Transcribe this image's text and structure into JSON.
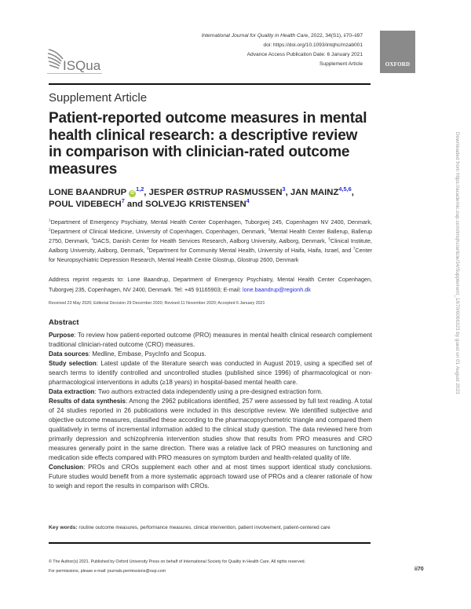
{
  "header": {
    "journal": "International Journal for Quality in Health Care",
    "citation": ", 2022, 34(S1), ii70–ii97",
    "doi": "doi: https://doi.org/10.1093/intqhc/mzab001",
    "advance_access": "Advance Access Publication Date: 6 January 2021",
    "article_type": "Supplement Article",
    "publisher_logo": "OXFORD",
    "society_logo": "ISQua"
  },
  "section_label": "Supplement Article",
  "title": "Patient-reported outcome measures in mental health clinical research: a descriptive review in comparison with clinician-rated outcome measures",
  "authors": [
    {
      "name": "LONE BAANDRUP",
      "sup": "1,2",
      "orcid": "iD"
    },
    {
      "sep": ", ",
      "name": "JESPER ØSTRUP RASMUSSEN",
      "sup": "3"
    },
    {
      "sep": ", ",
      "name": "JAN MAINZ",
      "sup": "4,5,6"
    },
    {
      "sep": ", ",
      "name": "POUL VIDEBECH",
      "sup": "7"
    },
    {
      "sep": " and ",
      "name": "SOLVEJG KRISTENSEN",
      "sup": "4"
    }
  ],
  "affiliations": [
    {
      "n": "1",
      "text": "Department of Emergency Psychiatry, Mental Health Center Copenhagen, Tuborgvej 245, Copenhagen NV 2400, Denmark, "
    },
    {
      "n": "2",
      "text": "Department of Clinical Medicine, University of Copenhagen, Copenhagen, Denmark, "
    },
    {
      "n": "3",
      "text": "Mental Health Center Ballerup, Ballerup 2750, Denmark, "
    },
    {
      "n": "4",
      "text": "DACS, Danish Center for Health Services Research, Aalborg University, Aalborg, Denmark, "
    },
    {
      "n": "5",
      "text": "Clinical Institute, Aalborg University, Aalborg, Denmark, "
    },
    {
      "n": "6",
      "text": "Department for Community Mental Health, University of Haifa, Haifa, Israel, and "
    },
    {
      "n": "7",
      "text": "Center for Neuropsychiatric Depression Research, Mental Health Centre Glostrup, Glostrup 2600, Denmark"
    }
  ],
  "address": {
    "text": "Address reprint requests to: Lone Baandrup, Department of Emergency Psychiatry, Mental Health Center Copenhagen, Tuborgvej 235, Copenhagen, NV 2400, Denmark. Tel: +45 91165903; E-mail: ",
    "email": "lone.baandrup@regionh.dk"
  },
  "dates": "Received 23 May 2020; Editorial Decision 29 December 2020; Revised 11 November 2020; Accepted 6 January 2021",
  "abstract": {
    "heading": "Abstract",
    "sections": [
      {
        "label": "Purpose",
        "text": ": To review how patient-reported outcome (PRO) measures in mental health clinical research complement traditional clinician-rated outcome (CRO) measures."
      },
      {
        "label": "Data sources",
        "text": ": Medline, Embase, PsycInfo and Scopus."
      },
      {
        "label": "Study selection",
        "text": ": Latest update of the literature search was conducted in August 2019, using a specified set of search terms to identify controlled and uncontrolled studies (published since 1996) of pharmacological or non-pharmacological interventions in adults (≥18 years) in hospital-based mental health care."
      },
      {
        "label": "Data extraction",
        "text": ": Two authors extracted data independently using a pre-designed extraction form."
      },
      {
        "label": "Results of data synthesis",
        "text": ": Among the 2962 publications identified, 257 were assessed by full text reading. A total of 24 studies reported in 26 publications were included in this descriptive review. We identified subjective and objective outcome measures, classified these according to the pharmacopsychometric triangle and compared them qualitatively in terms of incremental information added to the clinical study question. The data reviewed here from primarily depression and schizophrenia intervention studies show that results from PRO measures and CRO measures generally point in the same direction. There was a relative lack of PRO measures on functioning and medication side effects compared with PRO measures on symptom burden and health-related quality of life."
      },
      {
        "label": "Conclusion",
        "text": ": PROs and CROs supplement each other and at most times support identical study conclusions. Future studies would benefit from a more systematic approach toward use of PROs and a clearer rationale of how to weigh and report the results in comparison with CROs."
      }
    ]
  },
  "keywords": {
    "label": "Key words:",
    "text": " routine outcome measures, performance measures, clinical intervention, patient involvement, patient-centered care"
  },
  "footer": {
    "copyright": "© The Author(s) 2021. Published by Oxford University Press on behalf of International Society for Quality in Health Care. All rights reserved.",
    "permissions": "For permissions, please e-mail: journals.permissions@oup.com",
    "page_number": "ii70"
  },
  "side_note": "Downloaded from https://academic.oup.com/intqhc/article/34/Supplement_1/ii70/6066323 by guest on 01 August 2023",
  "colors": {
    "link": "#2a2ad8",
    "orcid": "#a6ce39",
    "oxford_box": "#8a8a8a"
  }
}
